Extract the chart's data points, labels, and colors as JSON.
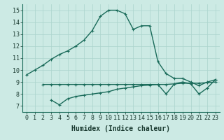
{
  "xlabel": "Humidex (Indice chaleur)",
  "ylabel": "",
  "bg_color": "#cceae4",
  "grid_color": "#aad4cc",
  "line_color": "#1a6b5a",
  "xlim": [
    -0.5,
    23.5
  ],
  "ylim": [
    6.5,
    15.5
  ],
  "xticks": [
    0,
    1,
    2,
    3,
    4,
    5,
    6,
    7,
    8,
    9,
    10,
    11,
    12,
    13,
    14,
    15,
    16,
    17,
    18,
    19,
    20,
    21,
    22,
    23
  ],
  "yticks": [
    7,
    8,
    9,
    10,
    11,
    12,
    13,
    14,
    15
  ],
  "line1_x": [
    0,
    1,
    2,
    3,
    4,
    5,
    6,
    7,
    8,
    9,
    10,
    11,
    12,
    13,
    14,
    15,
    16,
    17,
    18,
    19,
    20,
    21,
    22,
    23
  ],
  "line1_y": [
    9.6,
    10.0,
    10.4,
    10.9,
    11.3,
    11.6,
    12.0,
    12.5,
    13.3,
    14.5,
    15.0,
    15.0,
    14.7,
    13.4,
    13.7,
    13.7,
    10.7,
    9.7,
    9.3,
    9.3,
    9.0,
    8.7,
    9.0,
    9.2
  ],
  "line2_x": [
    2,
    3,
    4,
    5,
    6,
    7,
    8,
    9,
    10,
    11,
    12,
    13,
    14,
    15,
    16,
    17,
    18,
    19,
    20,
    21,
    22,
    23
  ],
  "line2_y": [
    8.8,
    8.8,
    8.8,
    8.8,
    8.8,
    8.8,
    8.8,
    8.8,
    8.8,
    8.8,
    8.8,
    8.8,
    8.8,
    8.8,
    8.8,
    8.8,
    8.85,
    8.9,
    8.9,
    8.9,
    8.95,
    9.0
  ],
  "line3_x": [
    3,
    4,
    5,
    6,
    7,
    8,
    9,
    10,
    11,
    12,
    13,
    14,
    15,
    16,
    17,
    18,
    19,
    20,
    21,
    22,
    23
  ],
  "line3_y": [
    7.5,
    7.1,
    7.6,
    7.8,
    7.9,
    8.0,
    8.1,
    8.2,
    8.4,
    8.5,
    8.6,
    8.7,
    8.75,
    8.8,
    8.0,
    8.85,
    9.0,
    8.85,
    8.0,
    8.5,
    9.2
  ],
  "marker_size": 2.5,
  "line_width": 1.0,
  "font_size_label": 7,
  "font_size_tick": 6
}
